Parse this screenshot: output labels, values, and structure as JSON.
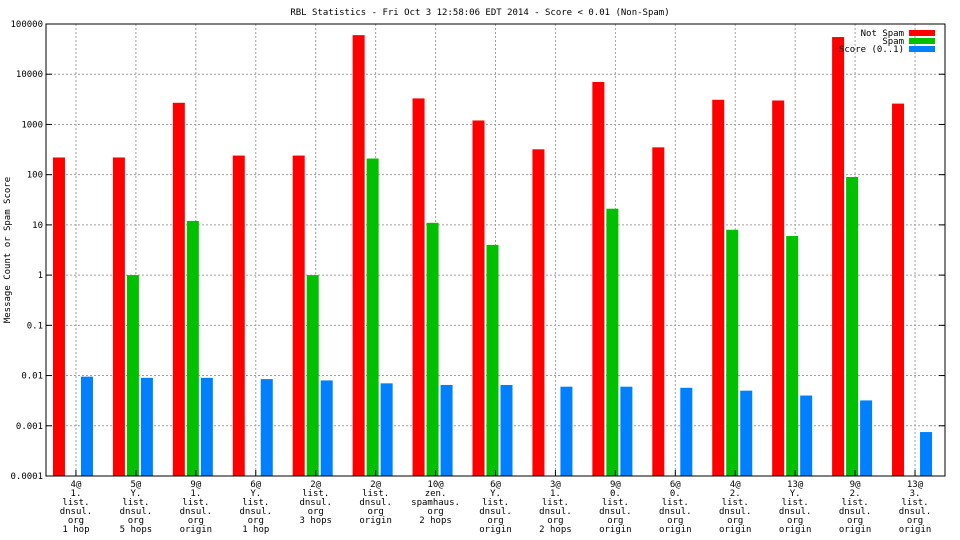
{
  "chart_data": {
    "type": "bar",
    "title": "RBL Statistics - Fri Oct  3 12:58:06 EDT 2014 - Score < 0.01 (Non-Spam)",
    "xlabel": "",
    "ylabel": "Message Count or Spam Score",
    "yscale": "log",
    "ylim": [
      0.0001,
      100000
    ],
    "yticks": [
      "0.0001",
      "0.001",
      "0.01",
      "0.1",
      "1",
      "10",
      "100",
      "1000",
      "10000",
      "100000"
    ],
    "grid": true,
    "legend_position": "top-right",
    "categories": [
      [
        "4@",
        "1.",
        "list.",
        "dnsul.",
        "org",
        "1 hop"
      ],
      [
        "5@",
        "Y.",
        "list.",
        "dnsul.",
        "org",
        "5 hops"
      ],
      [
        "9@",
        "1.",
        "list.",
        "dnsul.",
        "org",
        "origin"
      ],
      [
        "6@",
        "Y.",
        "list.",
        "dnsul.",
        "org",
        "1 hop"
      ],
      [
        "2@",
        "list.",
        "dnsul.",
        "org",
        "3 hops"
      ],
      [
        "2@",
        "list.",
        "dnsul.",
        "org",
        "origin"
      ],
      [
        "10@",
        "zen.",
        "spamhaus.",
        "org",
        "2 hops"
      ],
      [
        "6@",
        "Y.",
        "list.",
        "dnsul.",
        "org",
        "origin"
      ],
      [
        "3@",
        "1.",
        "list.",
        "dnsul.",
        "org",
        "2 hops"
      ],
      [
        "9@",
        "0.",
        "list.",
        "dnsul.",
        "org",
        "origin"
      ],
      [
        "6@",
        "0.",
        "list.",
        "dnsul.",
        "org",
        "origin"
      ],
      [
        "4@",
        "2.",
        "list.",
        "dnsul.",
        "org",
        "origin"
      ],
      [
        "13@",
        "Y.",
        "list.",
        "dnsul.",
        "org",
        "origin"
      ],
      [
        "9@",
        "2.",
        "list.",
        "dnsul.",
        "org",
        "origin"
      ],
      [
        "13@",
        "3.",
        "list.",
        "dnsul.",
        "org",
        "origin"
      ]
    ],
    "series": [
      {
        "name": "Not Spam",
        "color": "#ff0000",
        "values": [
          220,
          220,
          2700,
          240,
          240,
          60000,
          3300,
          1200,
          320,
          7000,
          350,
          3100,
          3000,
          55000,
          2600
        ]
      },
      {
        "name": "Spam",
        "color": "#00c000",
        "values": [
          null,
          1,
          12,
          null,
          1,
          210,
          11,
          4,
          null,
          21,
          null,
          8,
          6,
          90,
          null
        ]
      },
      {
        "name": "Score (0..1)",
        "color": "#0080ff",
        "values": [
          0.0095,
          0.009,
          0.009,
          0.0085,
          0.008,
          0.007,
          0.0065,
          0.0065,
          0.006,
          0.006,
          0.0057,
          0.005,
          0.004,
          0.0032,
          0.00075
        ]
      }
    ]
  }
}
